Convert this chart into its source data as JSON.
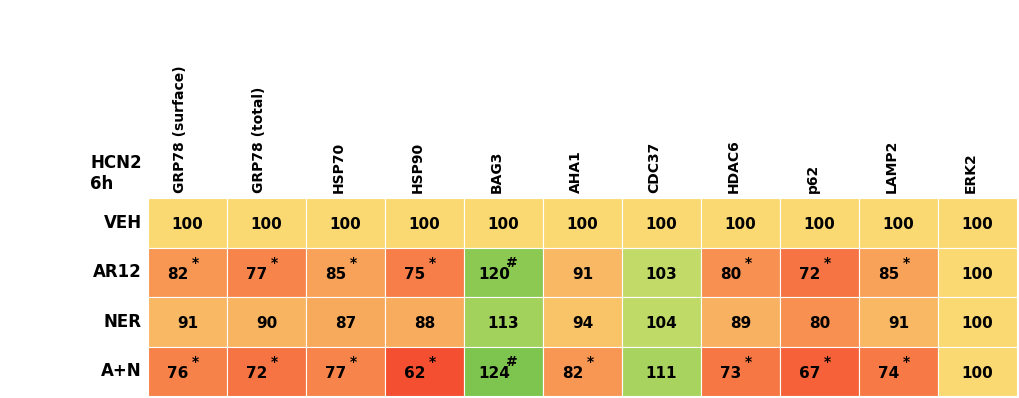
{
  "col_labels": [
    "GRP78 (surface)",
    "GRP78 (total)",
    "HSP70",
    "HSP90",
    "BAG3",
    "AHA1",
    "CDC37",
    "HDAC6",
    "p62",
    "LAMP2",
    "ERK2"
  ],
  "row_labels": [
    "VEH",
    "AR12",
    "NER",
    "A+N"
  ],
  "values": [
    [
      100,
      100,
      100,
      100,
      100,
      100,
      100,
      100,
      100,
      100,
      100
    ],
    [
      82,
      77,
      85,
      75,
      120,
      91,
      103,
      80,
      72,
      85,
      100
    ],
    [
      91,
      90,
      87,
      88,
      113,
      94,
      104,
      89,
      80,
      91,
      100
    ],
    [
      76,
      72,
      77,
      62,
      124,
      82,
      111,
      73,
      67,
      74,
      100
    ]
  ],
  "significance": [
    [
      null,
      null,
      null,
      null,
      null,
      null,
      null,
      null,
      null,
      null,
      null
    ],
    [
      "*",
      "*",
      "*",
      "*",
      "#",
      null,
      null,
      "*",
      "*",
      "*",
      null
    ],
    [
      null,
      null,
      null,
      null,
      null,
      null,
      null,
      null,
      null,
      null,
      null
    ],
    [
      "*",
      "*",
      "*",
      "*",
      "#",
      "*",
      null,
      "*",
      "*",
      "*",
      null
    ]
  ],
  "header_label": "HCN2\n6h",
  "col_header_fontsize": 10,
  "row_label_fontsize": 12,
  "cell_fontsize": 11,
  "sig_fontsize": 10,
  "color_low": [
    0.96,
    0.28,
    0.18
  ],
  "color_mid": [
    0.98,
    0.85,
    0.45
  ],
  "color_high_mild": [
    0.8,
    0.87,
    0.42
  ],
  "color_green": [
    0.42,
    0.75,
    0.28
  ],
  "val_low": 60,
  "val_mid": 100,
  "val_high": 130
}
